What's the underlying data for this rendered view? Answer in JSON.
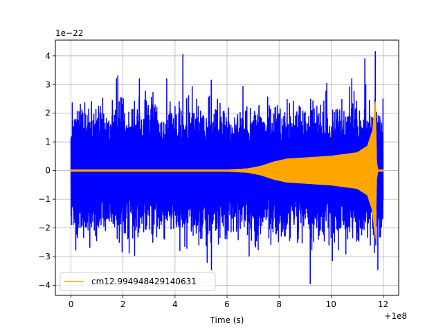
{
  "chart_data": {
    "type": "line",
    "xlabel": "Time (s)",
    "ylabel": "",
    "title": "",
    "x_offset_text": "+1e8",
    "y_scale_text": "1e−22",
    "xlim": [
      -0.6,
      12.6
    ],
    "ylim": [
      -4.35,
      4.55
    ],
    "x_ticks": [
      0,
      2,
      4,
      6,
      8,
      10,
      12
    ],
    "x_tick_labels": [
      "0",
      "2",
      "4",
      "6",
      "8",
      "10",
      "12"
    ],
    "y_ticks": [
      -4,
      -3,
      -2,
      -1,
      0,
      1,
      2,
      3,
      4
    ],
    "y_tick_labels": [
      "−4",
      "−3",
      "−2",
      "−1",
      "0",
      "1",
      "2",
      "3",
      "4"
    ],
    "grid": true,
    "legend_position": "lower-left",
    "series": [
      {
        "name": "",
        "color": "#0000ff",
        "kind": "noise",
        "x_range": [
          0,
          12
        ],
        "typical_amplitude": 1.6,
        "peaks": [
          {
            "x": 4.3,
            "y": 4.05
          },
          {
            "x": 11.7,
            "y": 4.15
          },
          {
            "x": 11.3,
            "y": 3.9
          },
          {
            "x": 9.2,
            "y": -3.95
          },
          {
            "x": 5.4,
            "y": -3.45
          },
          {
            "x": 11.8,
            "y": -3.45
          },
          {
            "x": 1.8,
            "y": 3.3
          }
        ]
      },
      {
        "name": "cm12.994948429140631",
        "color": "#ffa500",
        "kind": "chirp",
        "x_range": [
          0,
          12
        ],
        "envelope": [
          {
            "x": 0,
            "y": 0.02
          },
          {
            "x": 6.0,
            "y": 0.02
          },
          {
            "x": 6.8,
            "y": 0.06
          },
          {
            "x": 7.3,
            "y": 0.15
          },
          {
            "x": 7.8,
            "y": 0.3
          },
          {
            "x": 8.3,
            "y": 0.4
          },
          {
            "x": 9.0,
            "y": 0.44
          },
          {
            "x": 10.0,
            "y": 0.5
          },
          {
            "x": 11.0,
            "y": 0.62
          },
          {
            "x": 11.4,
            "y": 0.85
          },
          {
            "x": 11.6,
            "y": 1.4
          },
          {
            "x": 11.7,
            "y": 2.4
          },
          {
            "x": 11.75,
            "y": 0.3
          },
          {
            "x": 11.8,
            "y": 0.02
          },
          {
            "x": 12.0,
            "y": 0.02
          }
        ]
      }
    ]
  }
}
